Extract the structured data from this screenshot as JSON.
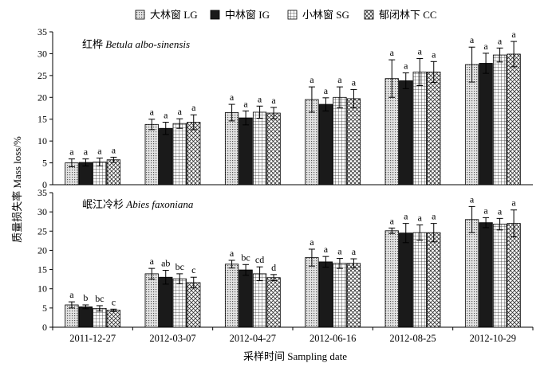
{
  "chart_data": {
    "type": "bar",
    "ylabel": "质量损失率 Mass loss/%",
    "xlabel": "采样时间 Sampling date",
    "categories": [
      "2011-12-27",
      "2012-03-07",
      "2012-04-27",
      "2012-06-16",
      "2012-08-25",
      "2012-10-29"
    ],
    "ylim": [
      0,
      35
    ],
    "yticks": [
      0,
      5,
      10,
      15,
      20,
      25,
      30,
      35
    ],
    "legend": [
      {
        "label": "大林窗 LG",
        "fill": "#d8d8d8",
        "pattern": "dots"
      },
      {
        "label": "中林窗 IG",
        "fill": "#1a1a1a",
        "pattern": "solid"
      },
      {
        "label": "小林窗 SG",
        "fill": "#ffffff",
        "pattern": "grid"
      },
      {
        "label": "郁闭林下 CC",
        "fill": "#ffffff",
        "pattern": "crosshatch"
      }
    ],
    "panels": [
      {
        "title_cn": "红桦",
        "title_latin": "Betula albo-sinensis",
        "series": [
          {
            "name": "大林窗 LG",
            "values": [
              5.0,
              13.8,
              16.5,
              19.5,
              24.3,
              27.5
            ],
            "errors": [
              0.9,
              1.2,
              1.9,
              2.9,
              4.3,
              4.0
            ],
            "labels": [
              "a",
              "a",
              "a",
              "a",
              "a",
              "a"
            ]
          },
          {
            "name": "中林窗 IG",
            "values": [
              5.1,
              12.9,
              15.3,
              18.4,
              23.8,
              27.8
            ],
            "errors": [
              0.8,
              1.4,
              1.6,
              1.5,
              1.8,
              2.3
            ],
            "labels": [
              "a",
              "a",
              "a",
              "a",
              "a",
              "a"
            ]
          },
          {
            "name": "小林窗 SG",
            "values": [
              5.2,
              14.0,
              16.6,
              20.0,
              25.8,
              29.7
            ],
            "errors": [
              0.9,
              1.1,
              1.4,
              2.4,
              3.1,
              1.6
            ],
            "labels": [
              "a",
              "a",
              "a",
              "a",
              "a",
              "a"
            ]
          },
          {
            "name": "郁闭林下 CC",
            "values": [
              5.7,
              14.3,
              16.4,
              19.7,
              25.8,
              29.9
            ],
            "errors": [
              0.6,
              1.7,
              1.3,
              2.1,
              2.4,
              2.9
            ],
            "labels": [
              "a",
              "a",
              "a",
              "a",
              "a",
              "a"
            ]
          }
        ]
      },
      {
        "title_cn": "岷江冷杉",
        "title_latin": "Abies faxoniana",
        "series": [
          {
            "name": "大林窗 LG",
            "values": [
              5.8,
              13.9,
              16.4,
              18.1,
              25.1,
              28.0
            ],
            "errors": [
              0.8,
              1.4,
              1.0,
              2.2,
              0.7,
              3.4
            ],
            "labels": [
              "a",
              "a",
              "a",
              "a",
              "a",
              "a"
            ]
          },
          {
            "name": "中林窗 IG",
            "values": [
              5.3,
              13.0,
              14.9,
              17.0,
              24.5,
              27.2
            ],
            "errors": [
              0.5,
              1.8,
              1.4,
              1.4,
              2.5,
              1.3
            ],
            "labels": [
              "b",
              "ab",
              "bc",
              "a",
              "a",
              "a"
            ]
          },
          {
            "name": "小林窗 SG",
            "values": [
              4.9,
              12.6,
              13.9,
              16.6,
              24.6,
              26.8
            ],
            "errors": [
              0.7,
              1.3,
              1.8,
              1.3,
              2.0,
              1.5
            ],
            "labels": [
              "bc",
              "bc",
              "cd",
              "a",
              "a",
              "a"
            ]
          },
          {
            "name": "郁闭林下 CC",
            "values": [
              4.4,
              11.6,
              12.9,
              16.6,
              24.6,
              27.0
            ],
            "errors": [
              0.3,
              1.4,
              0.8,
              1.2,
              2.4,
              3.5
            ],
            "labels": [
              "c",
              "c",
              "d",
              "a",
              "a",
              "a"
            ]
          }
        ]
      }
    ]
  }
}
